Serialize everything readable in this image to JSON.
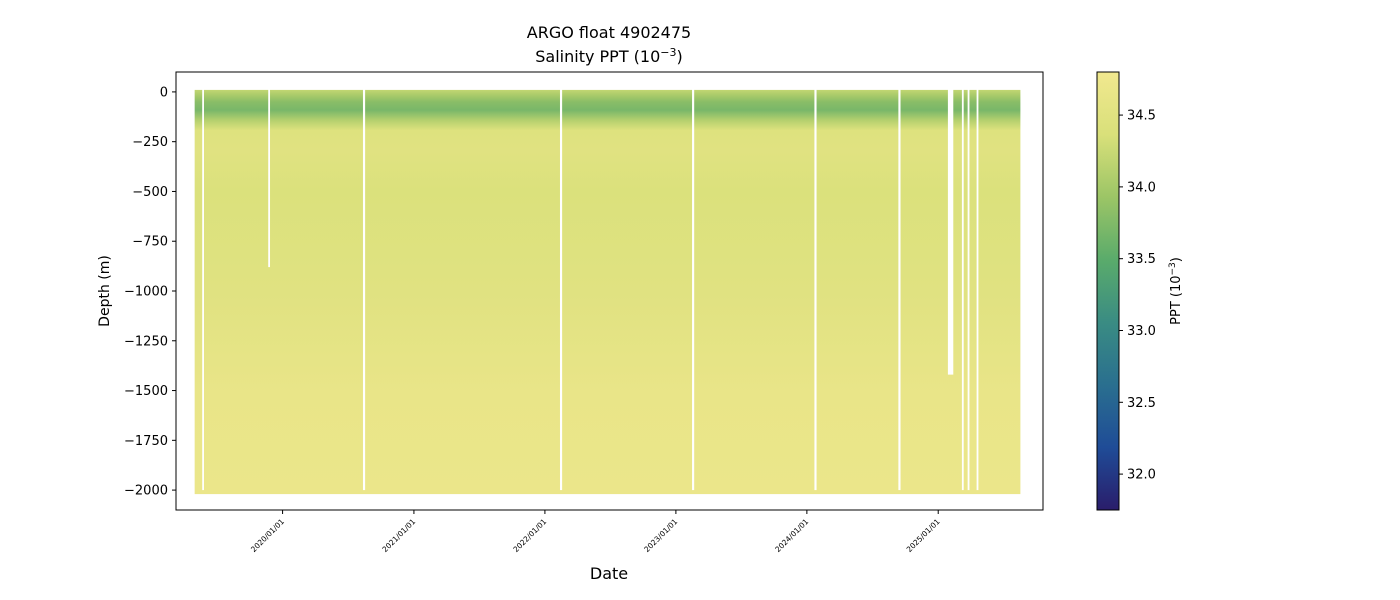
{
  "chart_data": {
    "type": "scatter",
    "title": "ARGO float 4902475",
    "subtitle_prefix": "Salinity PPT (10",
    "subtitle_exp": "−3",
    "subtitle_suffix": ")",
    "xlabel": "Date",
    "ylabel": "Depth (m)",
    "colorbar_label_prefix": "PPT (10",
    "colorbar_label_exp": "−3",
    "colorbar_label_suffix": ")",
    "colormap": "haline",
    "colormap_stops": [
      "#2a1d6b",
      "#1f4c97",
      "#2a6f8f",
      "#3a8c83",
      "#5aab6b",
      "#9cc566",
      "#d9e07a",
      "#f1e88f"
    ],
    "clim": [
      31.75,
      34.8
    ],
    "x_range": [
      "2019-03-10",
      "2025-10-20"
    ],
    "ylim": [
      -2100,
      100
    ],
    "grid": false,
    "y_ticks": [
      0,
      -250,
      -500,
      -750,
      -1000,
      -1250,
      -1500,
      -1750,
      -2000
    ],
    "y_tick_labels": [
      "0",
      "−250",
      "−500",
      "−750",
      "−1000",
      "−1250",
      "−1500",
      "−1750",
      "−2000"
    ],
    "x_ticks": [
      "2020-01-01",
      "2021-01-01",
      "2022-01-01",
      "2023-01-01",
      "2024-01-01",
      "2025-01-01"
    ],
    "x_tick_labels": [
      "2020/01/01",
      "2021/01/01",
      "2022/01/01",
      "2023/01/01",
      "2024/01/01",
      "2025/01/01"
    ],
    "colorbar_ticks": [
      32.0,
      32.5,
      33.0,
      33.5,
      34.0,
      34.5
    ],
    "colorbar_tick_labels": [
      "32.0",
      "32.5",
      "33.0",
      "33.5",
      "34.0",
      "34.5"
    ],
    "data_start": "2019-05-01",
    "data_end": "2025-08-18",
    "data_gaps": [
      {
        "start": "2019-05-22",
        "end": "2019-05-27",
        "bottom_m": -2000
      },
      {
        "start": "2019-11-22",
        "end": "2019-11-27",
        "bottom_m": -880
      },
      {
        "start": "2020-08-12",
        "end": "2020-08-18",
        "bottom_m": -2000
      },
      {
        "start": "2022-02-12",
        "end": "2022-02-18",
        "bottom_m": -2000
      },
      {
        "start": "2023-02-15",
        "end": "2023-02-21",
        "bottom_m": -2000
      },
      {
        "start": "2024-01-22",
        "end": "2024-01-28",
        "bottom_m": -2000
      },
      {
        "start": "2024-09-12",
        "end": "2024-09-18",
        "bottom_m": -2000
      },
      {
        "start": "2025-01-28",
        "end": "2025-02-12",
        "bottom_m": -1420
      },
      {
        "start": "2025-03-08",
        "end": "2025-03-13",
        "bottom_m": -2000
      },
      {
        "start": "2025-03-24",
        "end": "2025-03-29",
        "bottom_m": -2000
      },
      {
        "start": "2025-04-18",
        "end": "2025-04-23",
        "bottom_m": -2000
      }
    ],
    "salinity_profile": {
      "depths": [
        0,
        -30,
        -60,
        -100,
        -150,
        -200,
        -300,
        -500,
        -1000,
        -1500,
        -2000
      ],
      "values": [
        34.2,
        34.0,
        33.8,
        33.7,
        34.1,
        34.45,
        34.5,
        34.4,
        34.5,
        34.65,
        34.7
      ]
    }
  }
}
